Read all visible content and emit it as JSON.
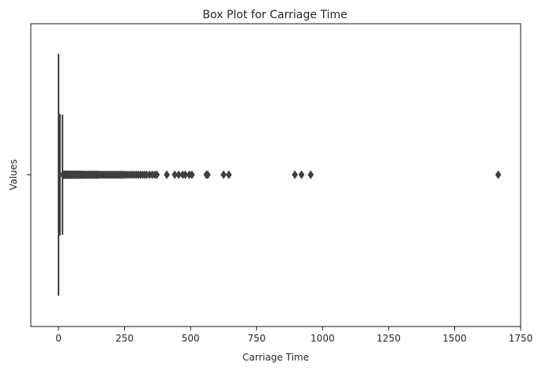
{
  "chart_data": {
    "type": "box",
    "title": "Box Plot for Carriage Time",
    "xlabel": "Carriage Time",
    "ylabel": "Values",
    "xlim": [
      -105,
      1750
    ],
    "x_ticks": [
      0,
      250,
      500,
      750,
      1000,
      1250,
      1500,
      1750
    ],
    "y_ticks": [
      ""
    ],
    "grid": false,
    "orientation": "horizontal",
    "box": {
      "q1": 0,
      "median": 2,
      "q3": 6,
      "whisker_low": 0,
      "whisker_high": 15
    },
    "outliers": [
      16,
      18,
      20,
      22,
      24,
      26,
      28,
      30,
      32,
      34,
      36,
      38,
      40,
      43,
      46,
      49,
      52,
      55,
      58,
      61,
      64,
      67,
      70,
      73,
      76,
      79,
      82,
      85,
      88,
      92,
      96,
      100,
      104,
      108,
      112,
      116,
      120,
      124,
      128,
      132,
      136,
      140,
      144,
      148,
      152,
      158,
      164,
      170,
      176,
      182,
      188,
      194,
      200,
      206,
      212,
      218,
      224,
      230,
      236,
      242,
      248,
      254,
      262,
      270,
      278,
      286,
      294,
      302,
      310,
      318,
      326,
      334,
      345,
      355,
      365,
      372,
      410,
      440,
      455,
      470,
      480,
      495,
      505,
      560,
      565,
      625,
      645,
      895,
      920,
      955,
      1665
    ],
    "colors": {
      "line": "#3f3f3f",
      "axes": "#000000",
      "text": "#262626"
    }
  }
}
